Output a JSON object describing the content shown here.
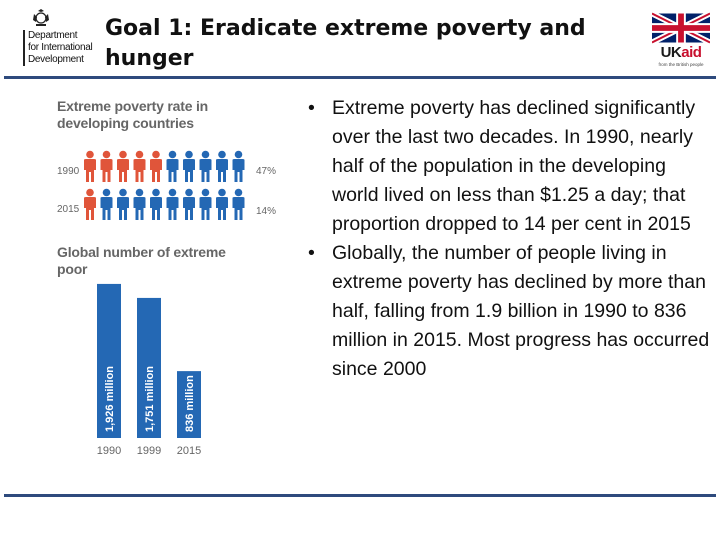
{
  "header": {
    "dfid_logo": {
      "lines": [
        "Department",
        "for International",
        "Development"
      ]
    },
    "title": "Goal 1: Eradicate extreme poverty and hunger",
    "ukaid_logo": {
      "uk": "UK",
      "aid": "aid",
      "tagline": "from the British people"
    }
  },
  "colors": {
    "rule": "#2e4a7d",
    "people_red": "#e0553a",
    "people_blue": "#2468b4",
    "bar_blue": "#2468b4",
    "muted_text": "#666666"
  },
  "infographic": {
    "rate_heading": "Extreme poverty rate in developing countries",
    "rows": [
      {
        "year": "1990",
        "percent": "47%",
        "red_count": 5,
        "total": 10
      },
      {
        "year": "2015",
        "percent": "14%",
        "red_count": 1,
        "total": 10
      }
    ],
    "number_heading": "Global number of extreme poor",
    "chart_data": {
      "type": "bar",
      "categories": [
        "1990",
        "1999",
        "2015"
      ],
      "values": [
        1926,
        1751,
        836
      ],
      "value_labels": [
        "1,926 million",
        "1,751 million",
        "836 million"
      ],
      "unit": "million"
    }
  },
  "bullets": [
    "Extreme poverty has declined significantly over the last two decades. In 1990, nearly half of the population in the developing world lived on less than $1.25 a day; that proportion dropped to 14 per cent in 2015",
    "Globally, the number of people living in extreme poverty has declined by more than half, falling from 1.9 billion in 1990 to 836 million in 2015. Most progress has occurred since 2000"
  ]
}
